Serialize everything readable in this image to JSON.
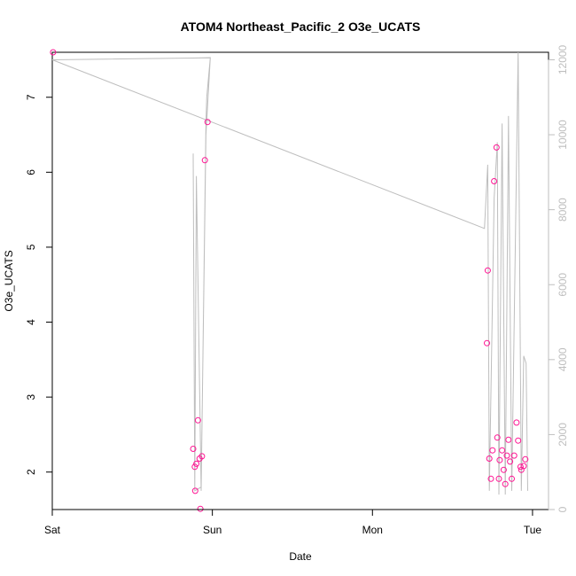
{
  "chart_data": {
    "type": "scatter",
    "title": "ATOM4 Northeast_Pacific_2 O3e_UCATS",
    "xlabel": "Date",
    "ylabel": "O3e_UCATS",
    "xlim": [
      0,
      3.1
    ],
    "ylim": [
      1.5,
      7.6
    ],
    "y2lim": [
      0,
      12200
    ],
    "x_ticks": [
      {
        "value": 0,
        "label": "Sat"
      },
      {
        "value": 1,
        "label": "Sun"
      },
      {
        "value": 2,
        "label": "Mon"
      },
      {
        "value": 3,
        "label": "Tue"
      }
    ],
    "y_ticks": [
      2,
      3,
      4,
      5,
      6,
      7
    ],
    "y2_ticks": [
      0,
      2000,
      4000,
      6000,
      8000,
      10000,
      12000
    ],
    "grid": false,
    "colors": {
      "points": "#ff1493",
      "altitude_line": "#bebebe",
      "axis": "#000000",
      "secondary_axis": "#bebebe"
    },
    "series": [
      {
        "kind": "points",
        "points": [
          [
            0.005,
            7.6
          ],
          [
            0.88,
            2.31
          ],
          [
            0.89,
            2.07
          ],
          [
            0.893,
            1.75
          ],
          [
            0.9,
            2.11
          ],
          [
            0.91,
            2.69
          ],
          [
            0.92,
            2.18
          ],
          [
            0.925,
            1.51
          ],
          [
            0.935,
            2.21
          ],
          [
            0.953,
            6.16
          ],
          [
            0.97,
            6.67
          ],
          [
            2.72,
            4.69
          ],
          [
            2.715,
            3.72
          ],
          [
            2.73,
            2.18
          ],
          [
            2.74,
            1.91
          ],
          [
            2.75,
            2.29
          ],
          [
            2.76,
            5.88
          ],
          [
            2.775,
            6.33
          ],
          [
            2.78,
            2.46
          ],
          [
            2.79,
            1.91
          ],
          [
            2.795,
            2.16
          ],
          [
            2.81,
            2.29
          ],
          [
            2.82,
            2.03
          ],
          [
            2.83,
            1.84
          ],
          [
            2.84,
            2.22
          ],
          [
            2.85,
            2.43
          ],
          [
            2.86,
            2.14
          ],
          [
            2.87,
            1.91
          ],
          [
            2.885,
            2.22
          ],
          [
            2.9,
            2.66
          ],
          [
            2.91,
            2.42
          ],
          [
            2.925,
            2.07
          ],
          [
            2.93,
            2.03
          ],
          [
            2.945,
            2.08
          ],
          [
            2.955,
            2.17
          ]
        ]
      },
      {
        "kind": "altitude_line",
        "axis": "right",
        "points": [
          [
            0.0,
            12000
          ],
          [
            0.987,
            12050
          ],
          [
            0.965,
            11000
          ],
          [
            0.96,
            10300
          ],
          [
            0.93,
            500
          ],
          [
            0.9,
            8900
          ],
          [
            0.89,
            500
          ],
          [
            0.88,
            9500
          ],
          [
            0.89,
            500
          ],
          [
            0.93,
            600
          ],
          [
            0.96,
            10000
          ],
          [
            0.987,
            12050
          ],
          [
            0.0,
            12000
          ],
          [
            2.7,
            7500
          ],
          [
            2.72,
            9200
          ],
          [
            2.73,
            500
          ],
          [
            2.76,
            8300
          ],
          [
            2.78,
            9800
          ],
          [
            2.79,
            400
          ],
          [
            2.81,
            10300
          ],
          [
            2.83,
            400
          ],
          [
            2.85,
            10500
          ],
          [
            2.87,
            500
          ],
          [
            2.91,
            12200
          ],
          [
            2.93,
            500
          ],
          [
            2.945,
            4100
          ],
          [
            2.96,
            3900
          ],
          [
            2.97,
            500
          ]
        ]
      }
    ]
  }
}
